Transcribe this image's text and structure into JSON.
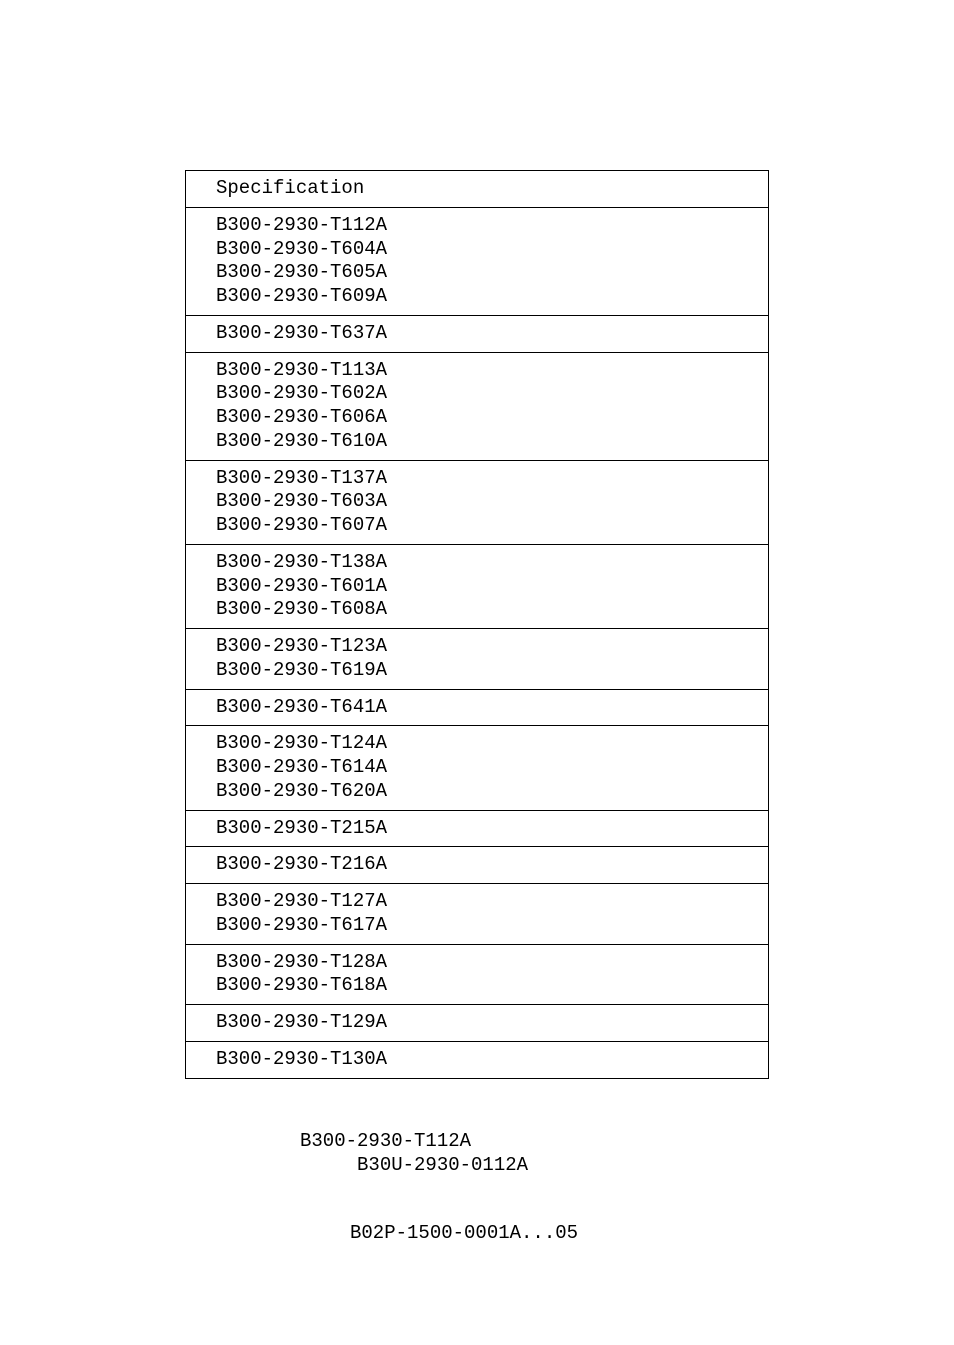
{
  "header": "Specification",
  "rows": [
    [
      "B300-2930-T112A",
      "B300-2930-T604A",
      "B300-2930-T605A",
      "B300-2930-T609A"
    ],
    [
      "B300-2930-T637A"
    ],
    [
      "B300-2930-T113A",
      "B300-2930-T602A",
      "B300-2930-T606A",
      "B300-2930-T610A"
    ],
    [
      "B300-2930-T137A",
      "B300-2930-T603A",
      "B300-2930-T607A"
    ],
    [
      "B300-2930-T138A",
      "B300-2930-T601A",
      "B300-2930-T608A"
    ],
    [
      "B300-2930-T123A",
      "B300-2930-T619A"
    ],
    [
      "B300-2930-T641A"
    ],
    [
      "B300-2930-T124A",
      "B300-2930-T614A",
      "B300-2930-T620A"
    ],
    [
      "B300-2930-T215A"
    ],
    [
      "B300-2930-T216A"
    ],
    [
      "B300-2930-T127A",
      "B300-2930-T617A"
    ],
    [
      "B300-2930-T128A",
      "B300-2930-T618A"
    ],
    [
      "B300-2930-T129A"
    ],
    [
      "B300-2930-T130A"
    ]
  ],
  "footer_line1": "B300-2930-T112A",
  "footer_line2": "     B30U-2930-0112A",
  "page_number": "B02P-1500-0001A...05",
  "colors": {
    "text": "#000000",
    "background": "#ffffff",
    "border": "#000000"
  },
  "font": {
    "family": "Courier New, monospace",
    "size_pt": 14
  }
}
